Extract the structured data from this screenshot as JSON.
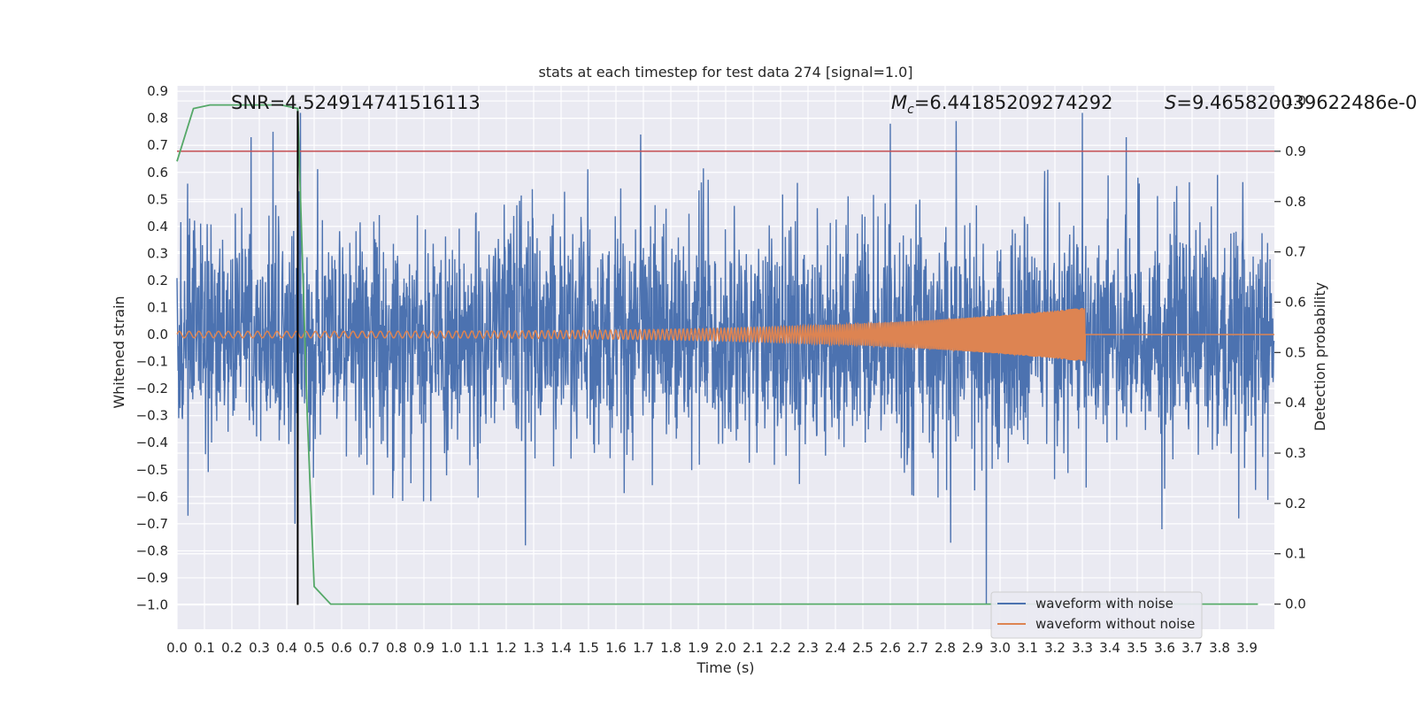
{
  "chart_data": {
    "type": "line",
    "title": "stats at each timestep for test data 274 [signal=1.0]",
    "xlabel": "Time (s)",
    "ylabel": "Whitened strain",
    "ylabel_right": "Detection probability",
    "xlim": [
      0.0,
      4.0
    ],
    "ylim": [
      -1.09,
      0.92
    ],
    "ylim_right": [
      -0.05,
      1.03
    ],
    "grid": true,
    "x_ticks": [
      "0.0",
      "0.1",
      "0.2",
      "0.3",
      "0.4",
      "0.5",
      "0.6",
      "0.7",
      "0.8",
      "0.9",
      "1.0",
      "1.1",
      "1.2",
      "1.3",
      "1.4",
      "1.5",
      "1.6",
      "1.7",
      "1.8",
      "1.9",
      "2.0",
      "2.1",
      "2.2",
      "2.3",
      "2.4",
      "2.5",
      "2.6",
      "2.7",
      "2.8",
      "2.9",
      "3.0",
      "3.1",
      "3.2",
      "3.3",
      "3.4",
      "3.5",
      "3.6",
      "3.7",
      "3.8",
      "3.9"
    ],
    "y_ticks": [
      "0.9",
      "0.8",
      "0.7",
      "0.6",
      "0.5",
      "0.4",
      "0.3",
      "0.2",
      "0.1",
      "0.0",
      "−0.1",
      "−0.2",
      "−0.3",
      "−0.4",
      "−0.5",
      "−0.6",
      "−0.7",
      "−0.8",
      "−0.9",
      "−1.0"
    ],
    "y_right_ticks": [
      "1.0",
      "0.9",
      "0.8",
      "0.7",
      "0.6",
      "0.5",
      "0.4",
      "0.3",
      "0.2",
      "0.1",
      "0.0"
    ],
    "annotations": {
      "snr": "SNR=4.524914741516113",
      "mc_symbol": "M",
      "mc_sub": "c",
      "mc_value": "=6.44185209274292",
      "s_symbol": "S",
      "s_value": "=9.465820039622486e-0"
    },
    "threshold_right": 0.9,
    "vline_x": 0.44,
    "series": [
      {
        "name": "waveform with noise",
        "color": "#4c72b0",
        "description_level": "noise amplitude ~0.3 typical, peaks to ~0.8, min -1.0 near 2.95 s",
        "spikes": [
          [
            0.27,
            0.73
          ],
          [
            0.35,
            0.75
          ],
          [
            0.45,
            0.82
          ],
          [
            1.69,
            0.74
          ],
          [
            2.6,
            0.78
          ],
          [
            2.84,
            0.79
          ],
          [
            3.3,
            0.82
          ],
          [
            3.46,
            0.73
          ],
          [
            2.95,
            -1.0
          ],
          [
            1.27,
            -0.78
          ],
          [
            0.43,
            -0.7
          ],
          [
            3.59,
            -0.72
          ],
          [
            3.87,
            -0.68
          ],
          [
            0.04,
            -0.67
          ],
          [
            2.82,
            -0.77
          ]
        ]
      },
      {
        "name": "waveform without noise",
        "color": "#dd8452",
        "chirp": {
          "start_amp": 0.012,
          "end_amp": 0.1,
          "merger_time": 3.31,
          "start_freq_hz": 28,
          "end_freq_hz": 260
        }
      },
      {
        "name": "detection probability",
        "axis": "right",
        "color": "#55a868",
        "points": [
          [
            0.0,
            0.88
          ],
          [
            0.06,
            0.985
          ],
          [
            0.12,
            0.992
          ],
          [
            0.2,
            0.992
          ],
          [
            0.3,
            0.992
          ],
          [
            0.38,
            0.992
          ],
          [
            0.44,
            0.985
          ],
          [
            0.475,
            0.37
          ],
          [
            0.5,
            0.035
          ],
          [
            0.56,
            0.0
          ],
          [
            1.0,
            0.0
          ],
          [
            2.0,
            0.0
          ],
          [
            3.0,
            0.0
          ],
          [
            3.94,
            0.0
          ]
        ]
      }
    ],
    "threshold_color": "#c44e52",
    "vline_color": "#000000"
  }
}
